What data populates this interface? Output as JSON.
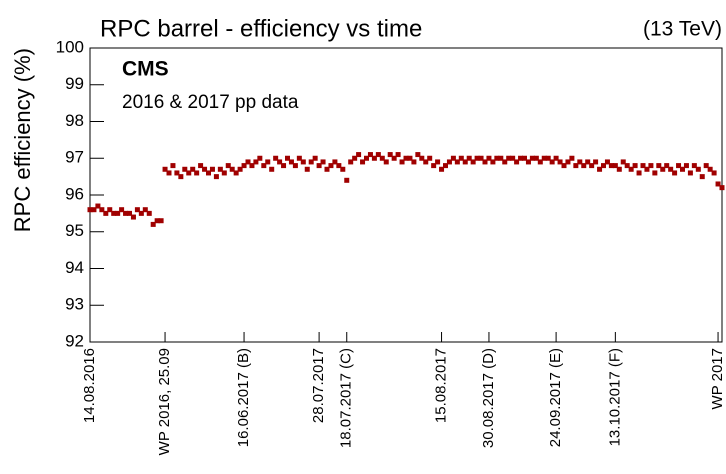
{
  "chart_data": {
    "type": "scatter",
    "title": "RPC barrel - efficiency vs time",
    "energy": "(13 TeV)",
    "experiment": "CMS",
    "subtitle": "2016 & 2017 pp data",
    "ylabel": "RPC efficiency (%)",
    "ylim": [
      92,
      100
    ],
    "yticks": [
      92,
      93,
      94,
      95,
      96,
      97,
      98,
      99,
      100
    ],
    "xlim": [
      0,
      160
    ],
    "xticks": [
      {
        "value": 0,
        "label": "14.08.2016"
      },
      {
        "value": 19,
        "label": "WP 2016, 25.09"
      },
      {
        "value": 39,
        "label": "16.06.2017 (B)"
      },
      {
        "value": 58,
        "label": "28.07.2017"
      },
      {
        "value": 65,
        "label": "18.07.2017 (C)"
      },
      {
        "value": 89,
        "label": "15.08.2017"
      },
      {
        "value": 101,
        "label": "30.08.2017 (D)"
      },
      {
        "value": 118,
        "label": "24.09.2017 (E)"
      },
      {
        "value": 133,
        "label": "13.10.2017 (F)"
      },
      {
        "value": 159,
        "label": "WP 2017"
      }
    ],
    "series": [
      {
        "color": "#a00000",
        "x": [
          0,
          1,
          2,
          3,
          4,
          5,
          6,
          7,
          8,
          9,
          10,
          11,
          12,
          13,
          14,
          15,
          16,
          17,
          18,
          19,
          20,
          21,
          22,
          23,
          24,
          25,
          26,
          27,
          28,
          29,
          30,
          31,
          32,
          33,
          34,
          35,
          36,
          37,
          38,
          39,
          40,
          41,
          42,
          43,
          44,
          45,
          46,
          47,
          48,
          49,
          50,
          51,
          52,
          53,
          54,
          55,
          56,
          57,
          58,
          59,
          60,
          61,
          62,
          63,
          64,
          65,
          66,
          67,
          68,
          69,
          70,
          71,
          72,
          73,
          74,
          75,
          76,
          77,
          78,
          79,
          80,
          81,
          82,
          83,
          84,
          85,
          86,
          87,
          88,
          89,
          90,
          91,
          92,
          93,
          94,
          95,
          96,
          97,
          98,
          99,
          100,
          101,
          102,
          103,
          104,
          105,
          106,
          107,
          108,
          109,
          110,
          111,
          112,
          113,
          114,
          115,
          116,
          117,
          118,
          119,
          120,
          121,
          122,
          123,
          124,
          125,
          126,
          127,
          128,
          129,
          130,
          131,
          132,
          133,
          134,
          135,
          136,
          137,
          138,
          139,
          140,
          141,
          142,
          143,
          144,
          145,
          146,
          147,
          148,
          149,
          150,
          151,
          152,
          153,
          154,
          155,
          156,
          157,
          158,
          159,
          160
        ],
        "values": [
          95.6,
          95.6,
          95.7,
          95.6,
          95.5,
          95.6,
          95.5,
          95.5,
          95.6,
          95.5,
          95.5,
          95.4,
          95.6,
          95.5,
          95.6,
          95.5,
          95.2,
          95.3,
          95.3,
          96.7,
          96.6,
          96.8,
          96.6,
          96.5,
          96.7,
          96.6,
          96.7,
          96.6,
          96.8,
          96.7,
          96.6,
          96.7,
          96.5,
          96.7,
          96.6,
          96.8,
          96.7,
          96.6,
          96.7,
          96.8,
          96.9,
          96.8,
          96.9,
          97.0,
          96.8,
          96.9,
          96.7,
          97.0,
          96.9,
          96.8,
          97.0,
          96.9,
          96.8,
          97.0,
          96.9,
          96.7,
          96.9,
          97.0,
          96.8,
          96.9,
          96.7,
          96.8,
          96.9,
          96.8,
          96.7,
          96.4,
          96.9,
          97.0,
          97.1,
          96.9,
          97.0,
          97.1,
          97.0,
          97.1,
          97.0,
          96.9,
          97.1,
          97.0,
          97.1,
          96.9,
          97.0,
          97.0,
          96.9,
          97.1,
          97.0,
          96.9,
          97.0,
          96.8,
          96.9,
          96.7,
          96.8,
          96.9,
          97.0,
          96.9,
          97.0,
          96.9,
          97.0,
          96.9,
          97.0,
          97.0,
          96.9,
          97.0,
          96.9,
          97.0,
          97.0,
          96.9,
          97.0,
          97.0,
          96.9,
          97.0,
          97.0,
          96.9,
          97.0,
          97.0,
          96.9,
          97.0,
          97.0,
          96.9,
          97.0,
          96.9,
          96.8,
          96.9,
          97.0,
          96.8,
          96.9,
          96.8,
          96.9,
          96.8,
          96.9,
          96.7,
          96.8,
          96.9,
          96.8,
          96.8,
          96.7,
          96.9,
          96.8,
          96.7,
          96.8,
          96.6,
          96.8,
          96.7,
          96.8,
          96.6,
          96.8,
          96.7,
          96.8,
          96.7,
          96.6,
          96.8,
          96.7,
          96.8,
          96.6,
          96.8,
          96.7,
          96.5,
          96.8,
          96.7,
          96.6,
          96.3,
          96.2
        ]
      }
    ]
  }
}
